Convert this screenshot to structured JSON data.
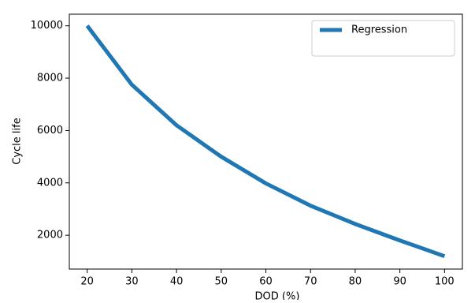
{
  "chart_data": {
    "type": "line",
    "x_label": "DOD (%)",
    "y_label": "Cycle life",
    "x": [
      20,
      30,
      40,
      50,
      60,
      70,
      80,
      90,
      100
    ],
    "series": [
      {
        "name": "Regression",
        "color": "#1f77b4",
        "values": [
          10000,
          7750,
          6200,
          5000,
          3980,
          3130,
          2430,
          1800,
          1200
        ]
      }
    ],
    "xlim": [
      16,
      104
    ],
    "ylim": [
      708,
      10442
    ],
    "xticks": [
      20,
      30,
      40,
      50,
      60,
      70,
      80,
      90,
      100
    ],
    "yticks": [
      2000,
      4000,
      6000,
      8000,
      10000
    ],
    "grid": false,
    "legend": "upper right"
  }
}
